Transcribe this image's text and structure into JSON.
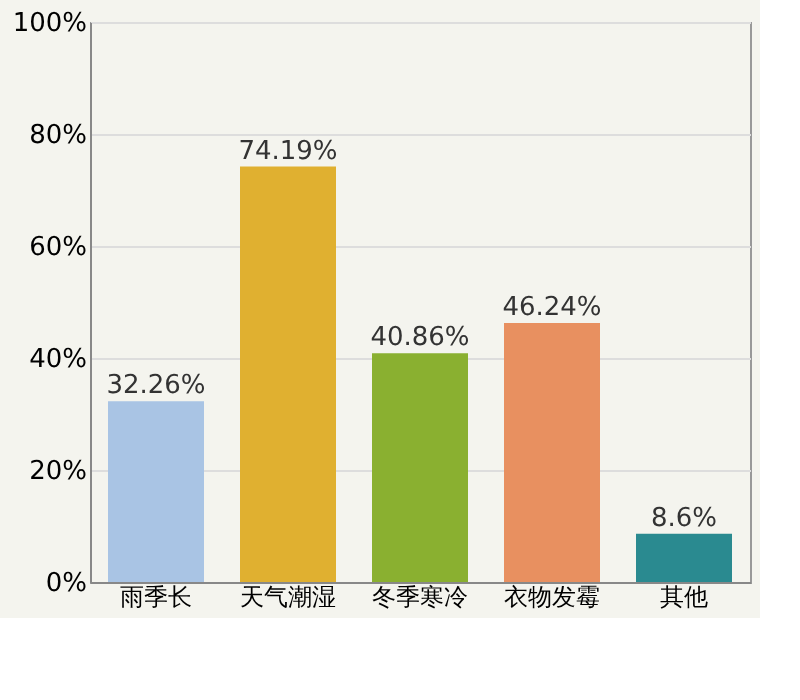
{
  "chart_data": {
    "type": "bar",
    "categories": [
      "雨季长",
      "天气潮湿",
      "冬季寒冷",
      "衣物发霉",
      "其他"
    ],
    "values": [
      32.26,
      74.19,
      40.86,
      46.24,
      8.6
    ],
    "colors": [
      "#a9c4e4",
      "#e0b030",
      "#8ab030",
      "#e89060",
      "#2a8a90"
    ],
    "value_labels": [
      "32.26%",
      "74.19%",
      "40.86%",
      "46.24%",
      "8.6%"
    ],
    "ylim": [
      0,
      100
    ],
    "yticks": [
      {
        "value": 0,
        "label": "0%"
      },
      {
        "value": 20,
        "label": "20%"
      },
      {
        "value": 40,
        "label": "40%"
      },
      {
        "value": 60,
        "label": "60%"
      },
      {
        "value": 80,
        "label": "80%"
      },
      {
        "value": 100,
        "label": "100%"
      }
    ],
    "grid": "y"
  }
}
